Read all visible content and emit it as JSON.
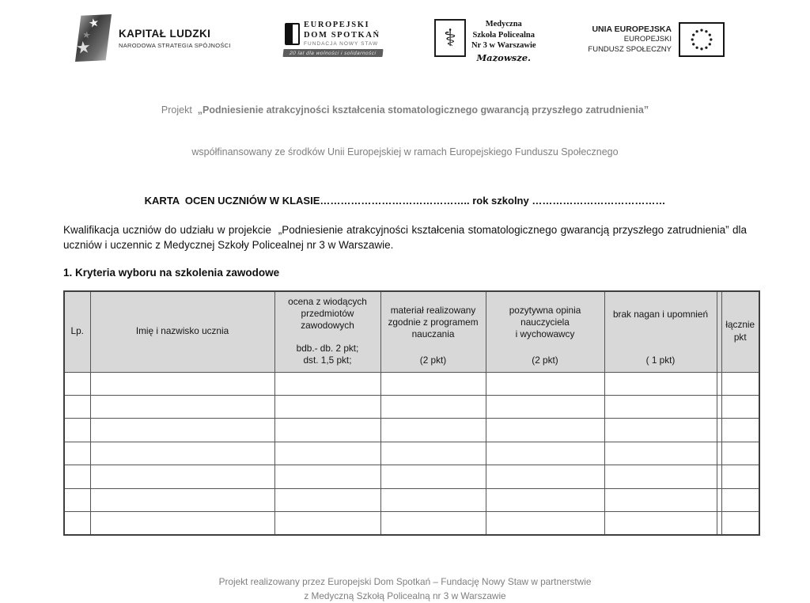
{
  "logos": {
    "kapital_ludzki": {
      "title": "KAPITAŁ LUDZKI",
      "subtitle": "NARODOWA STRATEGIA SPÓJNOŚCI"
    },
    "dom_spotkan": {
      "line1": "EUROPEJSKI",
      "line2": "DOM SPOTKAŃ",
      "line3": "FUNDACJA NOWY STAW",
      "banner": "20 lat dla wolności i solidarności"
    },
    "szkola": {
      "emblem_glyph": "⚕",
      "line1": "Medyczna",
      "line2": "Szkoła Policealna",
      "line3": "Nr 3 w Warszawie",
      "script": "Mazowsze."
    },
    "unia": {
      "line1": "UNIA EUROPEJSKA",
      "line2": "EUROPEJSKI",
      "line3": "FUNDUSZ SPOŁECZNY"
    }
  },
  "header": {
    "project_prefix": "Projekt  ",
    "project_bold": "„Podniesienie atrakcyjności kształcenia stomatologicznego gwarancją przyszłego zatrudnienia”",
    "project_line2": "współfinansowany ze środków Unii Europejskiej w ramach Europejskiego Funduszu Społecznego"
  },
  "body": {
    "card_title": "KARTA  OCEN UCZNIÓW W KLASIE…………………………………….. rok szkolny …………………………………",
    "paragraph": "Kwalifikacja uczniów do udziału w projekcie  „Podniesienie atrakcyjności kształcenia stomatologicznego gwarancją przyszłego zatrudnienia” dla uczniów i uczennic z Medycznej Szkoły Policealnej nr 3 w Warszawie.",
    "section_heading": "1. Kryteria wyboru na szkolenia zawodowe"
  },
  "table": {
    "header_bg": "#d8d8d8",
    "border_color": "#555555",
    "empty_row_count": 7,
    "columns": [
      {
        "name": "lp",
        "top": "Lp.",
        "bottom": ""
      },
      {
        "name": "imie-nazwisko",
        "top": "Imię i nazwisko ucznia",
        "bottom": ""
      },
      {
        "name": "ocena",
        "top": "ocena z wiodących\nprzedmiotów\nzawodowych",
        "bottom": "bdb.- db. 2 pkt;\ndst. 1,5 pkt;"
      },
      {
        "name": "material",
        "top": "materiał realizowany\nzgodnie z programem\nnauczania",
        "bottom": "(2 pkt)"
      },
      {
        "name": "opinia",
        "top": "pozytywna opinia\nnauczyciela\ni wychowawcy",
        "bottom": "(2 pkt)"
      },
      {
        "name": "nagany",
        "top": "brak nagan i upomnień",
        "bottom": "( 1 pkt)"
      },
      {
        "name": "spacer",
        "top": "",
        "bottom": ""
      },
      {
        "name": "lacznie",
        "top": "łącznie\npkt",
        "bottom": ""
      }
    ]
  },
  "footer": {
    "line1": "Projekt realizowany przez Europejski Dom Spotkań – Fundację Nowy Staw w partnerstwie",
    "line2": "z Medyczną Szkołą Policealną nr 3 w Warszawie"
  }
}
